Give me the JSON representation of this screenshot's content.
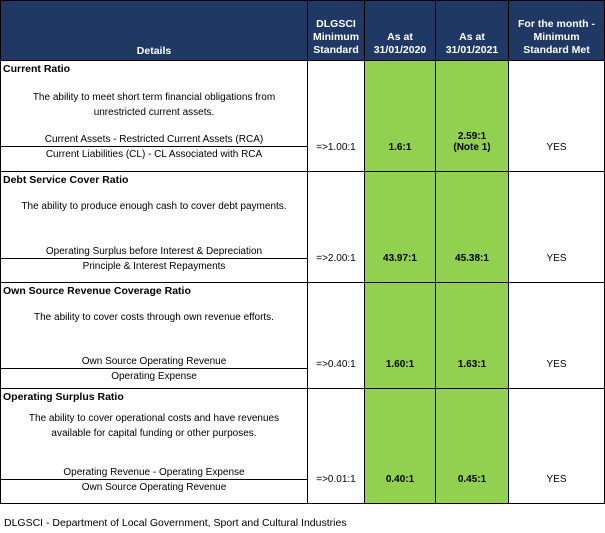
{
  "colors": {
    "header_bg": "#1f3864",
    "header_text": "#ffffff",
    "highlight": "#92d050"
  },
  "header": {
    "details": "Details",
    "standard": [
      "DLGSCI",
      "Minimum",
      "Standard"
    ],
    "col2020": [
      "As at",
      "31/01/2020"
    ],
    "col2021": [
      "As at",
      "31/01/2021"
    ],
    "met": [
      "For the month -",
      "Minimum",
      "Standard Met"
    ]
  },
  "rows": [
    {
      "title": "Current Ratio",
      "desc": "The ability to meet short term financial obligations from unrestricted current assets.",
      "numerator": "Current Assets - Restricted Current Assets (RCA)",
      "denominator": "Current Liabilities (CL) - CL Associated with RCA",
      "standard": "=>1.00:1",
      "v2020": "1.6:1",
      "v2021": "2.59:1",
      "note": "(Note 1)",
      "met": "YES"
    },
    {
      "title": "Debt Service Cover Ratio",
      "desc": "The ability to produce enough cash to cover debt payments.",
      "numerator": "Operating Surplus before Interest & Depreciation",
      "denominator": "Principle & Interest Repayments",
      "standard": "=>2.00:1",
      "v2020": "43.97:1",
      "v2021": "45.38:1",
      "met": "YES"
    },
    {
      "title": "Own Source Revenue Coverage Ratio",
      "desc": "The ability to cover costs through own revenue efforts.",
      "numerator": "Own Source Operating Revenue",
      "denominator": "Operating Expense",
      "standard": "=>0.40:1",
      "v2020": "1.60:1",
      "v2021": "1.63:1",
      "met": "YES"
    },
    {
      "title": "Operating Surplus Ratio",
      "desc": "The ability to cover operational costs and have revenues available for capital funding or other purposes.",
      "numerator": "Operating Revenue - Operating Expense",
      "denominator": "Own Source Operating Revenue",
      "standard": "=>0.01:1",
      "v2020": "0.40:1",
      "v2021": "0.45:1",
      "met": "YES"
    }
  ],
  "footer": "DLGSCI - Department of Local Government, Sport and Cultural Industries"
}
